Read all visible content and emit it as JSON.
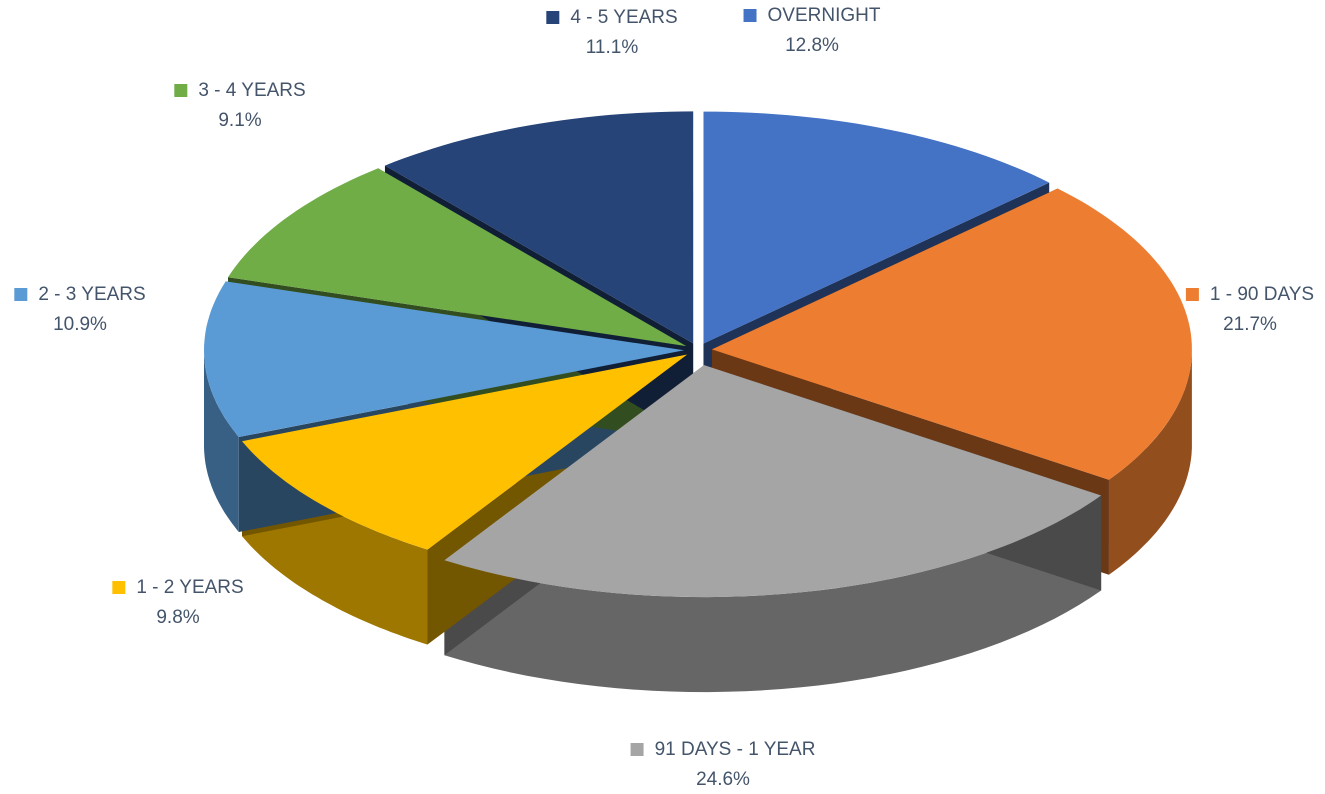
{
  "chart_data": {
    "type": "pie",
    "categories": [
      "OVERNIGHT",
      "1 - 90 DAYS",
      "91 DAYS - 1 YEAR",
      "1 - 2 YEARS",
      "2 - 3 YEARS",
      "3 - 4 YEARS",
      "4 - 5 YEARS"
    ],
    "values": [
      12.8,
      21.7,
      24.6,
      9.8,
      10.9,
      9.1,
      11.1
    ],
    "value_labels": [
      "12.8%",
      "21.7%",
      "24.6%",
      "9.8%",
      "10.9%",
      "9.1%",
      "11.1%"
    ],
    "colors": [
      "#4472c4",
      "#ed7d31",
      "#a5a5a5",
      "#ffc000",
      "#5b9bd5",
      "#70ad47",
      "#264478"
    ]
  }
}
